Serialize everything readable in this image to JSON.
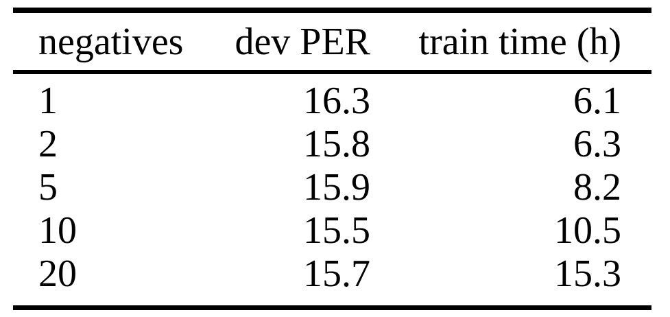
{
  "colors": {
    "background": "#ffffff",
    "text": "#000000",
    "rule": "#000000"
  },
  "table": {
    "columns": [
      {
        "label": "negatives",
        "align": "left"
      },
      {
        "label": "dev PER",
        "align": "right"
      },
      {
        "label": "train time (h)",
        "align": "right"
      }
    ],
    "rows": [
      [
        "1",
        "16.3",
        "6.1"
      ],
      [
        "2",
        "15.8",
        "6.3"
      ],
      [
        "5",
        "15.9",
        "8.2"
      ],
      [
        "10",
        "15.5",
        "10.5"
      ],
      [
        "20",
        "15.7",
        "15.3"
      ]
    ]
  },
  "chart_data": {
    "type": "table",
    "title": "",
    "columns": [
      "negatives",
      "dev PER",
      "train time (h)"
    ],
    "rows": [
      [
        1,
        16.3,
        6.1
      ],
      [
        2,
        15.8,
        6.3
      ],
      [
        5,
        15.9,
        8.2
      ],
      [
        10,
        15.5,
        10.5
      ],
      [
        20,
        15.7,
        15.3
      ]
    ]
  }
}
